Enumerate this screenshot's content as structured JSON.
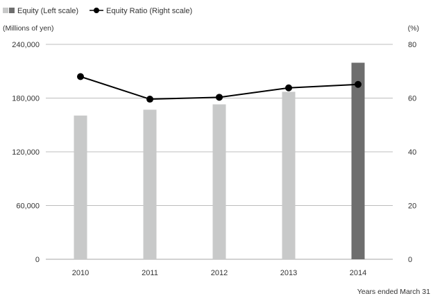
{
  "chart_data": {
    "type": "bar+line",
    "categories": [
      "2010",
      "2011",
      "2012",
      "2013",
      "2014"
    ],
    "series": [
      {
        "name": "Equity (Left scale)",
        "type": "bar",
        "axis": "left",
        "values": [
          160500,
          167000,
          173000,
          187000,
          219500
        ],
        "colors": [
          "#c8c9c9",
          "#c8c9c9",
          "#c8c9c9",
          "#c8c9c9",
          "#6e6e6e"
        ]
      },
      {
        "name": "Equity Ratio (Right scale)",
        "type": "line",
        "axis": "right",
        "values": [
          68.0,
          59.6,
          60.3,
          63.8,
          65.1
        ],
        "color": "#000000"
      }
    ],
    "left_axis": {
      "label": "(Millions of yen)",
      "ticks": [
        0,
        60000,
        120000,
        180000,
        240000
      ],
      "tick_labels": [
        "0",
        "60,000",
        "120,000",
        "180,000",
        "240,000"
      ],
      "range": [
        0,
        240000
      ]
    },
    "right_axis": {
      "label": "(%)",
      "ticks": [
        0,
        20,
        40,
        60,
        80
      ],
      "tick_labels": [
        "0",
        "20",
        "40",
        "60",
        "80"
      ],
      "range": [
        0,
        80
      ]
    },
    "x_footnote": "Years ended March 31",
    "legend": {
      "placement": "top-left",
      "bar_colors": [
        "#c8c9c9",
        "#6e6e6e"
      ],
      "line_color": "#000000"
    },
    "grid": true
  }
}
